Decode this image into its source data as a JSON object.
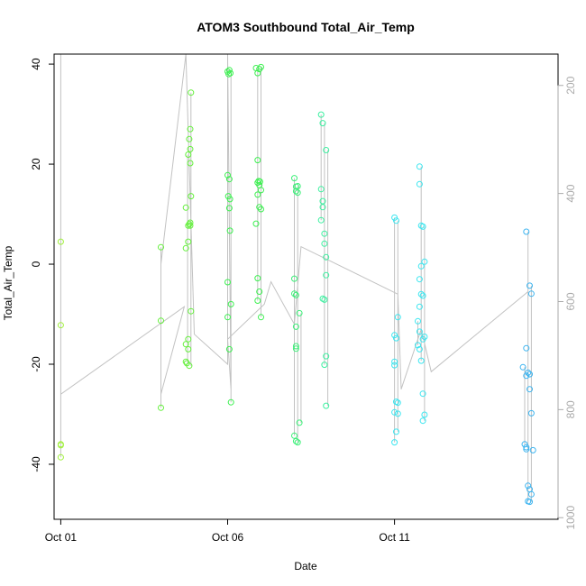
{
  "chart_data": {
    "type": "scatter",
    "title": "ATOM3 Southbound Total_Air_Temp",
    "xlabel": "Date",
    "ylabel": "Total_Air_Temp",
    "x_ticks": [
      {
        "day": 1,
        "label": "Oct 01"
      },
      {
        "day": 6,
        "label": "Oct 06"
      },
      {
        "day": 11,
        "label": "Oct 11"
      }
    ],
    "y_ticks": [
      -40,
      -20,
      0,
      20,
      40
    ],
    "y_right_ticks": [
      200,
      400,
      600,
      800,
      1000
    ],
    "xlim": [
      0.8,
      15.9
    ],
    "ylim": [
      -51,
      42
    ],
    "y_right_lim": [
      1003,
      142
    ],
    "grid": false,
    "colors": {
      "trace": "#c2c2c2",
      "right_axis": "#aaaaaa"
    },
    "series": [
      {
        "color": "#a0f03c",
        "points": [
          [
            1.0,
            4.5
          ],
          [
            1.0,
            -12.2
          ],
          [
            1.0,
            -36.0
          ],
          [
            1.0,
            -36.2
          ],
          [
            1.0,
            -38.6
          ]
        ]
      },
      {
        "color": "#64f03c",
        "points": [
          [
            4.0,
            3.4
          ],
          [
            4.0,
            -11.3
          ],
          [
            4.0,
            -28.7
          ],
          [
            4.75,
            11.3
          ],
          [
            4.75,
            3.2
          ],
          [
            4.75,
            -16.0
          ],
          [
            4.75,
            -19.5
          ],
          [
            4.78,
            -19.8
          ],
          [
            4.82,
            21.9
          ],
          [
            4.82,
            7.7
          ],
          [
            4.82,
            4.5
          ],
          [
            4.82,
            -15.0
          ],
          [
            4.82,
            -17.0
          ],
          [
            4.85,
            25.0
          ],
          [
            4.85,
            8.0
          ],
          [
            4.85,
            -20.3
          ],
          [
            4.88,
            27.0
          ],
          [
            4.88,
            23.0
          ],
          [
            4.88,
            20.2
          ],
          [
            4.88,
            8.3
          ],
          [
            4.88,
            7.7
          ],
          [
            4.9,
            34.3
          ],
          [
            4.9,
            13.6
          ],
          [
            4.9,
            -9.4
          ]
        ]
      },
      {
        "color": "#3cf050",
        "points": [
          [
            6.0,
            38.5
          ],
          [
            6.03,
            38.0
          ],
          [
            6.05,
            38.8
          ],
          [
            6.08,
            38.2
          ],
          [
            6.0,
            17.8
          ],
          [
            6.02,
            13.6
          ],
          [
            6.05,
            17.0
          ],
          [
            6.07,
            13.0
          ],
          [
            6.05,
            11.2
          ],
          [
            6.07,
            6.7
          ],
          [
            6.0,
            -3.6
          ],
          [
            6.0,
            -10.6
          ],
          [
            6.1,
            -8.0
          ],
          [
            6.05,
            -17.0
          ],
          [
            6.1,
            -27.6
          ],
          [
            6.85,
            39.2
          ],
          [
            6.9,
            38.2
          ],
          [
            6.95,
            39.0
          ],
          [
            7.0,
            39.4
          ],
          [
            6.9,
            20.8
          ],
          [
            6.9,
            16.3
          ],
          [
            6.93,
            16.6
          ],
          [
            6.97,
            16.5
          ],
          [
            6.95,
            15.8
          ],
          [
            6.9,
            13.9
          ],
          [
            7.0,
            14.8
          ],
          [
            6.95,
            11.4
          ],
          [
            7.0,
            11.0
          ],
          [
            6.85,
            8.1
          ],
          [
            6.9,
            -2.8
          ],
          [
            6.95,
            -5.5
          ],
          [
            6.9,
            -7.3
          ],
          [
            7.0,
            -10.6
          ]
        ]
      },
      {
        "color": "#3cf078",
        "points": [
          [
            8.0,
            17.2
          ],
          [
            8.05,
            15.5
          ],
          [
            8.1,
            15.6
          ],
          [
            8.05,
            14.6
          ],
          [
            8.1,
            14.3
          ],
          [
            8.0,
            -2.9
          ],
          [
            8.0,
            -5.9
          ],
          [
            8.05,
            -6.2
          ],
          [
            8.05,
            -12.5
          ],
          [
            8.15,
            -9.8
          ],
          [
            8.05,
            -16.4
          ],
          [
            8.05,
            -16.9
          ],
          [
            8.15,
            -31.7
          ],
          [
            8.0,
            -34.3
          ],
          [
            8.05,
            -35.4
          ],
          [
            8.1,
            -35.6
          ]
        ]
      },
      {
        "color": "#3cf0a0",
        "points": [
          [
            8.8,
            29.9
          ],
          [
            8.85,
            28.2
          ],
          [
            8.95,
            22.8
          ],
          [
            8.8,
            15.0
          ],
          [
            8.85,
            12.6
          ],
          [
            8.85,
            11.4
          ],
          [
            8.8,
            8.8
          ],
          [
            8.9,
            6.1
          ],
          [
            8.9,
            4.1
          ],
          [
            8.95,
            1.4
          ],
          [
            8.95,
            -2.2
          ],
          [
            8.85,
            -6.9
          ],
          [
            8.9,
            -7.1
          ],
          [
            8.95,
            -18.4
          ],
          [
            8.9,
            -20.1
          ],
          [
            8.95,
            -28.3
          ]
        ]
      },
      {
        "color": "#3ce6f0",
        "points": [
          [
            11.0,
            9.3
          ],
          [
            11.05,
            8.7
          ],
          [
            11.1,
            -10.6
          ],
          [
            11.0,
            -14.2
          ],
          [
            11.05,
            -14.8
          ],
          [
            11.0,
            -19.5
          ],
          [
            11.0,
            -20.2
          ],
          [
            11.05,
            -27.5
          ],
          [
            11.1,
            -27.7
          ],
          [
            11.0,
            -29.6
          ],
          [
            11.1,
            -29.9
          ],
          [
            11.05,
            -33.5
          ],
          [
            11.0,
            -35.6
          ],
          [
            11.75,
            19.5
          ],
          [
            11.75,
            16.0
          ],
          [
            11.8,
            7.7
          ],
          [
            11.85,
            7.5
          ],
          [
            11.9,
            0.5
          ],
          [
            11.8,
            -0.4
          ],
          [
            11.75,
            -3.0
          ],
          [
            11.8,
            -6.0
          ],
          [
            11.85,
            -6.3
          ],
          [
            11.75,
            -8.5
          ],
          [
            11.7,
            -11.4
          ],
          [
            11.75,
            -13.5
          ],
          [
            11.9,
            -14.5
          ],
          [
            11.85,
            -15.0
          ],
          [
            11.7,
            -16.2
          ],
          [
            11.75,
            -17.0
          ],
          [
            11.8,
            -19.3
          ],
          [
            11.85,
            -25.9
          ],
          [
            11.9,
            -30.1
          ],
          [
            11.85,
            -31.3
          ]
        ]
      },
      {
        "color": "#3cb4f0",
        "points": [
          [
            14.95,
            6.5
          ],
          [
            15.05,
            -4.3
          ],
          [
            15.1,
            -5.9
          ],
          [
            14.95,
            -16.8
          ],
          [
            14.85,
            -20.6
          ],
          [
            15.0,
            -21.7
          ],
          [
            15.05,
            -22.0
          ],
          [
            14.95,
            -22.3
          ],
          [
            15.05,
            -25.0
          ],
          [
            15.1,
            -29.8
          ],
          [
            14.9,
            -36.0
          ],
          [
            14.95,
            -36.6
          ],
          [
            14.95,
            -37.0
          ],
          [
            15.15,
            -37.2
          ],
          [
            15.0,
            -44.3
          ],
          [
            15.05,
            -45.0
          ],
          [
            15.1,
            -46.0
          ],
          [
            15.0,
            -47.4
          ],
          [
            15.05,
            -47.5
          ]
        ]
      }
    ]
  }
}
